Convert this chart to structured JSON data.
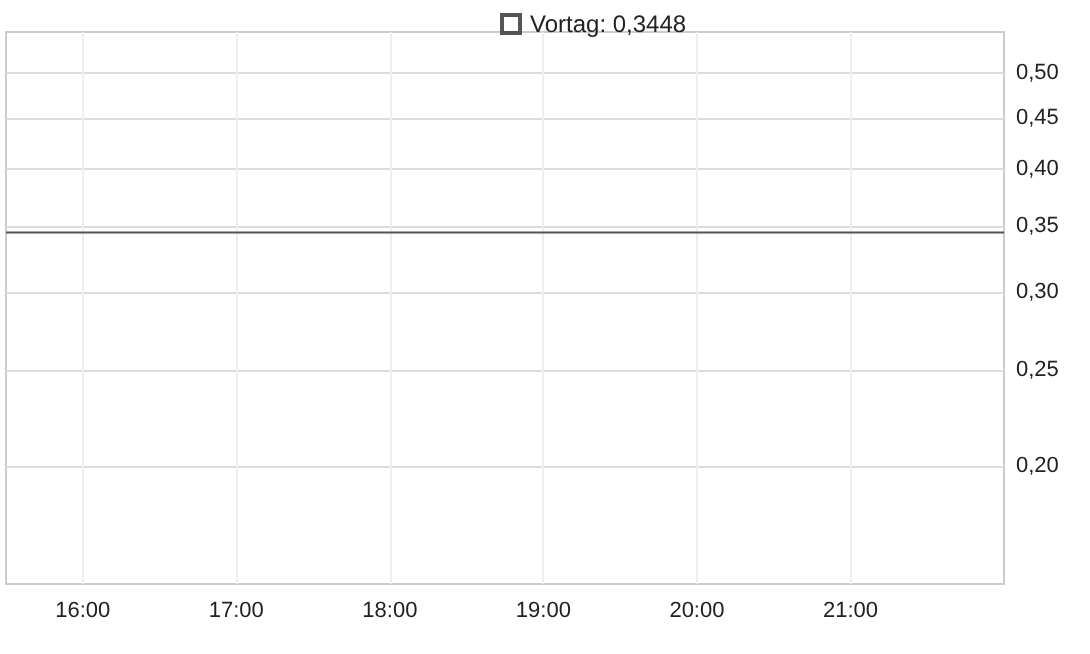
{
  "chart_data": {
    "type": "line",
    "log": "y",
    "grid": true,
    "xlim": [
      15.5,
      22
    ],
    "xticks": [
      {
        "value": 16,
        "label": "16:00"
      },
      {
        "value": 17,
        "label": "17:00"
      },
      {
        "value": 18,
        "label": "18:00"
      },
      {
        "value": 19,
        "label": "19:00"
      },
      {
        "value": 20,
        "label": "20:00"
      },
      {
        "value": 21,
        "label": "21:00"
      }
    ],
    "ylim": [
      0.152,
      0.55
    ],
    "yticks": [
      {
        "value": 0.2,
        "label": "0,20"
      },
      {
        "value": 0.25,
        "label": "0,25"
      },
      {
        "value": 0.3,
        "label": "0,30"
      },
      {
        "value": 0.35,
        "label": "0,35"
      },
      {
        "value": 0.4,
        "label": "0,40"
      },
      {
        "value": 0.45,
        "label": "0,45"
      },
      {
        "value": 0.5,
        "label": "0,50"
      }
    ],
    "ref_lines": [
      {
        "axis": "y",
        "value": 0.3448,
        "label": "Vortag: 0,3448",
        "color": "#555555"
      }
    ]
  }
}
